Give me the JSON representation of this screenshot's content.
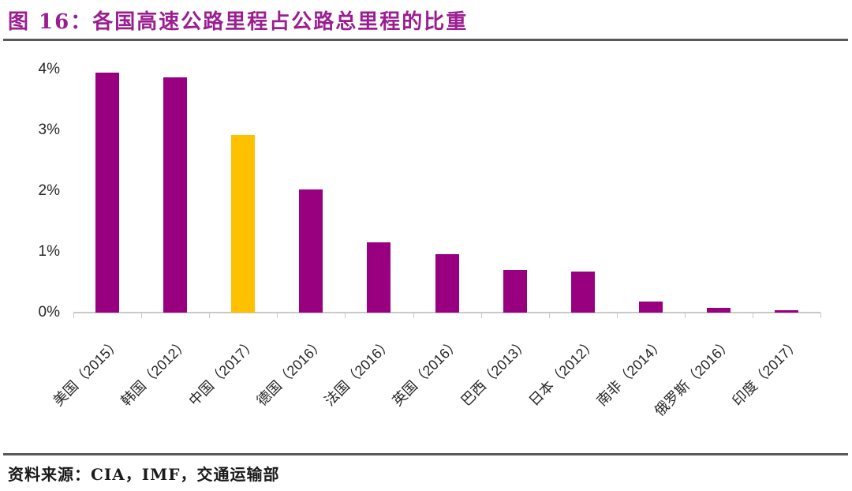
{
  "header": {
    "title": "图 16：各国高速公路里程占公路总里程的比重"
  },
  "footer": {
    "source": "资料来源：CIA，IMF，交通运输部"
  },
  "colors": {
    "title_text": "#9B1E91",
    "bar": "#990080",
    "bar_highlight": "#FFC000",
    "divider": "#595959",
    "axis": "#C9C9C9",
    "text": "#262626"
  },
  "chart_data": {
    "type": "bar",
    "title": "各国高速公路里程占公路总里程的比重",
    "categories": [
      "美国（2015）",
      "韩国（2012）",
      "中国（2017）",
      "德国（2016）",
      "法国（2016）",
      "英国（2016）",
      "巴西（2013）",
      "日本（2012）",
      "南非（2014）",
      "俄罗斯（2016）",
      "印度（2017）"
    ],
    "values": [
      3.95,
      3.87,
      2.92,
      2.03,
      1.15,
      0.96,
      0.7,
      0.67,
      0.18,
      0.08,
      0.04
    ],
    "unit": "%",
    "xlabel": "",
    "ylabel": "",
    "ylim": [
      0,
      4
    ],
    "y_ticks": [
      "0%",
      "1%",
      "2%",
      "3%",
      "4%"
    ],
    "grid": false,
    "legend": "none",
    "bar_color": "#990080",
    "highlight_index": 2,
    "highlight_color": "#FFC000",
    "x_label_rotation_deg": -45
  }
}
